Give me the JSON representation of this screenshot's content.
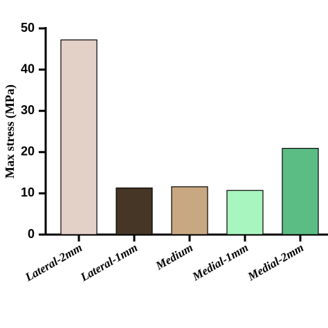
{
  "chart_data": {
    "type": "bar",
    "y_label": "Max stress (MPa)",
    "categories": [
      "Lateral-2mm",
      "Lateral-1mm",
      "Medium",
      "Medial-1mm",
      "Medial-2mm"
    ],
    "values": [
      47.2,
      11.3,
      11.6,
      10.7,
      20.9
    ],
    "colors": [
      "#e3d1c8",
      "#453626",
      "#c8a882",
      "#a8f5c0",
      "#5cbd84"
    ],
    "ylim": [
      0,
      50
    ],
    "yticks": [
      0,
      10,
      20,
      30,
      40,
      50
    ]
  }
}
